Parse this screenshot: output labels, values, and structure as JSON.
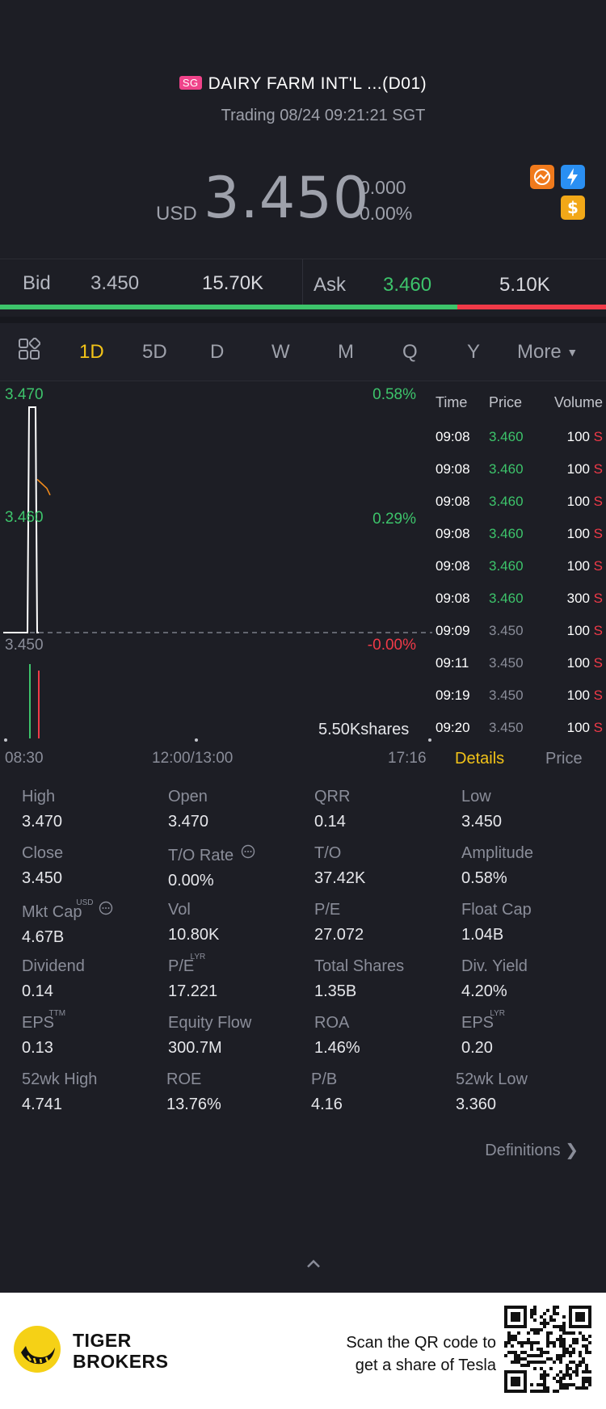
{
  "header": {
    "market_badge": "SG",
    "title": "DAIRY FARM INT'L ...(D01)",
    "status": "Trading 08/24 09:21:21 SGT",
    "currency": "USD",
    "price": "3.450",
    "change": "0.000",
    "change_pct": "0.00%",
    "icons": [
      "trend-icon",
      "lightning-icon",
      "dollar-icon"
    ]
  },
  "bidask": {
    "bid_label": "Bid",
    "bid_price": "3.450",
    "bid_volume": "15.70K",
    "ask_label": "Ask",
    "ask_price": "3.460",
    "ask_volume": "5.10K",
    "bid_fraction": 0.755
  },
  "tabs": {
    "items": [
      "1D",
      "5D",
      "D",
      "W",
      "M",
      "Q",
      "Y",
      "More"
    ],
    "active": "1D"
  },
  "chart_data": {
    "type": "line",
    "x_ticks": [
      "08:30",
      "12:00/13:00",
      "17:16"
    ],
    "y_ticks_left": [
      "3.470",
      "3.460",
      "3.450"
    ],
    "y_ticks_right": [
      "0.58%",
      "0.29%",
      "-0.00%"
    ],
    "ylim": [
      3.45,
      3.47
    ],
    "reference_price": 3.45,
    "series": [
      {
        "values": [
          {
            "t": "08:30",
            "y": 3.45
          },
          {
            "t": "08:55",
            "y": 3.45
          },
          {
            "t": "08:56",
            "y": 3.47
          },
          {
            "t": "09:05",
            "y": 3.47
          },
          {
            "t": "09:07",
            "y": 3.45
          },
          {
            "t": "09:08",
            "y": 3.46
          },
          {
            "t": "09:20",
            "y": 3.45
          }
        ]
      }
    ],
    "volume_label": "5.50Kshares"
  },
  "trades": {
    "headers": [
      "Time",
      "Price",
      "Volume"
    ],
    "rows": [
      {
        "time": "09:08",
        "price": "3.460",
        "volume": "100",
        "side": "S",
        "up": true
      },
      {
        "time": "09:08",
        "price": "3.460",
        "volume": "100",
        "side": "S",
        "up": true
      },
      {
        "time": "09:08",
        "price": "3.460",
        "volume": "100",
        "side": "S",
        "up": true
      },
      {
        "time": "09:08",
        "price": "3.460",
        "volume": "100",
        "side": "S",
        "up": true
      },
      {
        "time": "09:08",
        "price": "3.460",
        "volume": "100",
        "side": "S",
        "up": true
      },
      {
        "time": "09:08",
        "price": "3.460",
        "volume": "300",
        "side": "S",
        "up": true
      },
      {
        "time": "09:09",
        "price": "3.450",
        "volume": "100",
        "side": "S",
        "up": false
      },
      {
        "time": "09:11",
        "price": "3.450",
        "volume": "100",
        "side": "S",
        "up": false
      },
      {
        "time": "09:19",
        "price": "3.450",
        "volume": "100",
        "side": "S",
        "up": false
      },
      {
        "time": "09:20",
        "price": "3.450",
        "volume": "100",
        "side": "S",
        "up": false
      }
    ],
    "subtabs": [
      "Details",
      "Price"
    ]
  },
  "stats": [
    {
      "k": "High",
      "v": "3.470"
    },
    {
      "k": "Open",
      "v": "3.470"
    },
    {
      "k": "QRR",
      "v": "0.14"
    },
    {
      "k": "Low",
      "v": "3.450"
    },
    {
      "k": "Close",
      "v": "3.450"
    },
    {
      "k": "T/O Rate",
      "v": "0.00%",
      "info": true
    },
    {
      "k": "T/O",
      "v": "37.42K"
    },
    {
      "k": "Amplitude",
      "v": "0.58%"
    },
    {
      "k": "Mkt Cap",
      "v": "4.67B",
      "sup": "USD",
      "info": true
    },
    {
      "k": "Vol",
      "v": "10.80K"
    },
    {
      "k": "P/E",
      "v": "27.072"
    },
    {
      "k": "Float Cap",
      "v": "1.04B"
    },
    {
      "k": "Dividend",
      "v": "0.14"
    },
    {
      "k": "P/E",
      "v": "17.221",
      "sup": "LYR"
    },
    {
      "k": "Total Shares",
      "v": "1.35B"
    },
    {
      "k": "Div. Yield",
      "v": "4.20%"
    },
    {
      "k": "EPS",
      "v": "0.13",
      "sup": "TTM"
    },
    {
      "k": "Equity Flow",
      "v": "300.7M"
    },
    {
      "k": "ROA",
      "v": "1.46%"
    },
    {
      "k": "EPS",
      "v": "0.20",
      "sup": "LYR"
    },
    {
      "k": "52wk High",
      "v": "4.741"
    },
    {
      "k": "ROE",
      "v": "13.76%"
    },
    {
      "k": "P/B",
      "v": "4.16"
    },
    {
      "k": "52wk Low",
      "v": "3.360"
    }
  ],
  "definitions_label": "Definitions",
  "footer": {
    "brand_line1": "TIGER",
    "brand_line2": "BROKERS",
    "scan_line1": "Scan the QR code to",
    "scan_line2": "get a share of Tesla"
  },
  "colors": {
    "up": "#3dc46b",
    "down": "#f03a48",
    "accent": "#f2c318",
    "background": "#1d1e25"
  }
}
